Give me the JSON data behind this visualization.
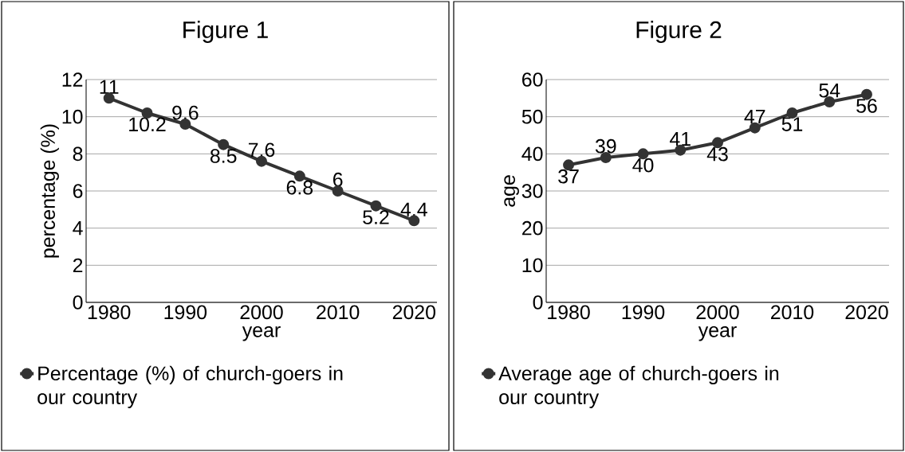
{
  "chart_data": [
    {
      "type": "line",
      "title": "Figure 1",
      "xlabel": "year",
      "ylabel": "percentage (%)",
      "x": [
        1980,
        1985,
        1990,
        1995,
        2000,
        2005,
        2010,
        2015,
        2020
      ],
      "series": [
        {
          "name": "Percentage (%) of church-goers in our country",
          "color": "#333333",
          "values": [
            11,
            10.2,
            9.6,
            8.5,
            7.6,
            6.8,
            6,
            5.2,
            4.4
          ]
        }
      ],
      "xlim": [
        1977,
        2023
      ],
      "xticks": [
        1980,
        1990,
        2000,
        2010,
        2020
      ],
      "ylim": [
        0,
        12
      ],
      "yticks": [
        0,
        2,
        4,
        6,
        8,
        10,
        12
      ],
      "grid": "y",
      "legend": "bottom",
      "marker": "circle",
      "data_labels": true
    },
    {
      "type": "line",
      "title": "Figure 2",
      "xlabel": "year",
      "ylabel": "age",
      "x": [
        1980,
        1985,
        1990,
        1995,
        2000,
        2005,
        2010,
        2015,
        2020
      ],
      "series": [
        {
          "name": "Average age of church-goers in our country",
          "color": "#333333",
          "values": [
            37,
            39,
            40,
            41,
            43,
            47,
            51,
            54,
            56
          ]
        }
      ],
      "xlim": [
        1977,
        2023
      ],
      "xticks": [
        1980,
        1990,
        2000,
        2010,
        2020
      ],
      "ylim": [
        0,
        60
      ],
      "yticks": [
        0,
        10,
        20,
        30,
        40,
        50,
        60
      ],
      "grid": "y",
      "legend": "bottom",
      "marker": "circle",
      "data_labels": true
    }
  ]
}
